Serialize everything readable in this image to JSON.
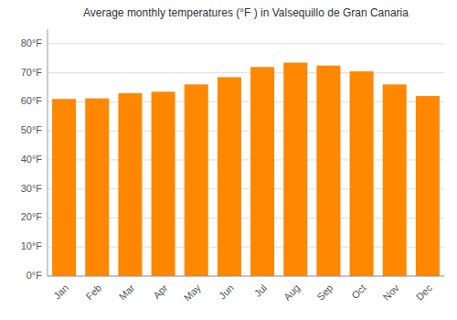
{
  "chart_data": {
    "type": "bar",
    "title": "Average monthly temperatures (°F ) in Valsequillo de Gran Canaria",
    "categories": [
      "Jan",
      "Feb",
      "Mar",
      "Apr",
      "May",
      "Jun",
      "Jul",
      "Aug",
      "Sep",
      "Oct",
      "Nov",
      "Dec"
    ],
    "values": [
      61.0,
      61.2,
      63.0,
      63.5,
      66.0,
      68.5,
      72.0,
      73.5,
      72.5,
      70.5,
      66.0,
      62.0
    ],
    "color": "#FF8800",
    "ylim": [
      0,
      85
    ],
    "yticks": [
      {
        "value": 0,
        "label": "0°F"
      },
      {
        "value": 10,
        "label": "10°F"
      },
      {
        "value": 20,
        "label": "20°F"
      },
      {
        "value": 30,
        "label": "30°F"
      },
      {
        "value": 40,
        "label": "40°F"
      },
      {
        "value": 50,
        "label": "50°F"
      },
      {
        "value": 60,
        "label": "60°F"
      },
      {
        "value": 70,
        "label": "70°F"
      },
      {
        "value": 80,
        "label": "80°F"
      }
    ],
    "grid": true
  }
}
